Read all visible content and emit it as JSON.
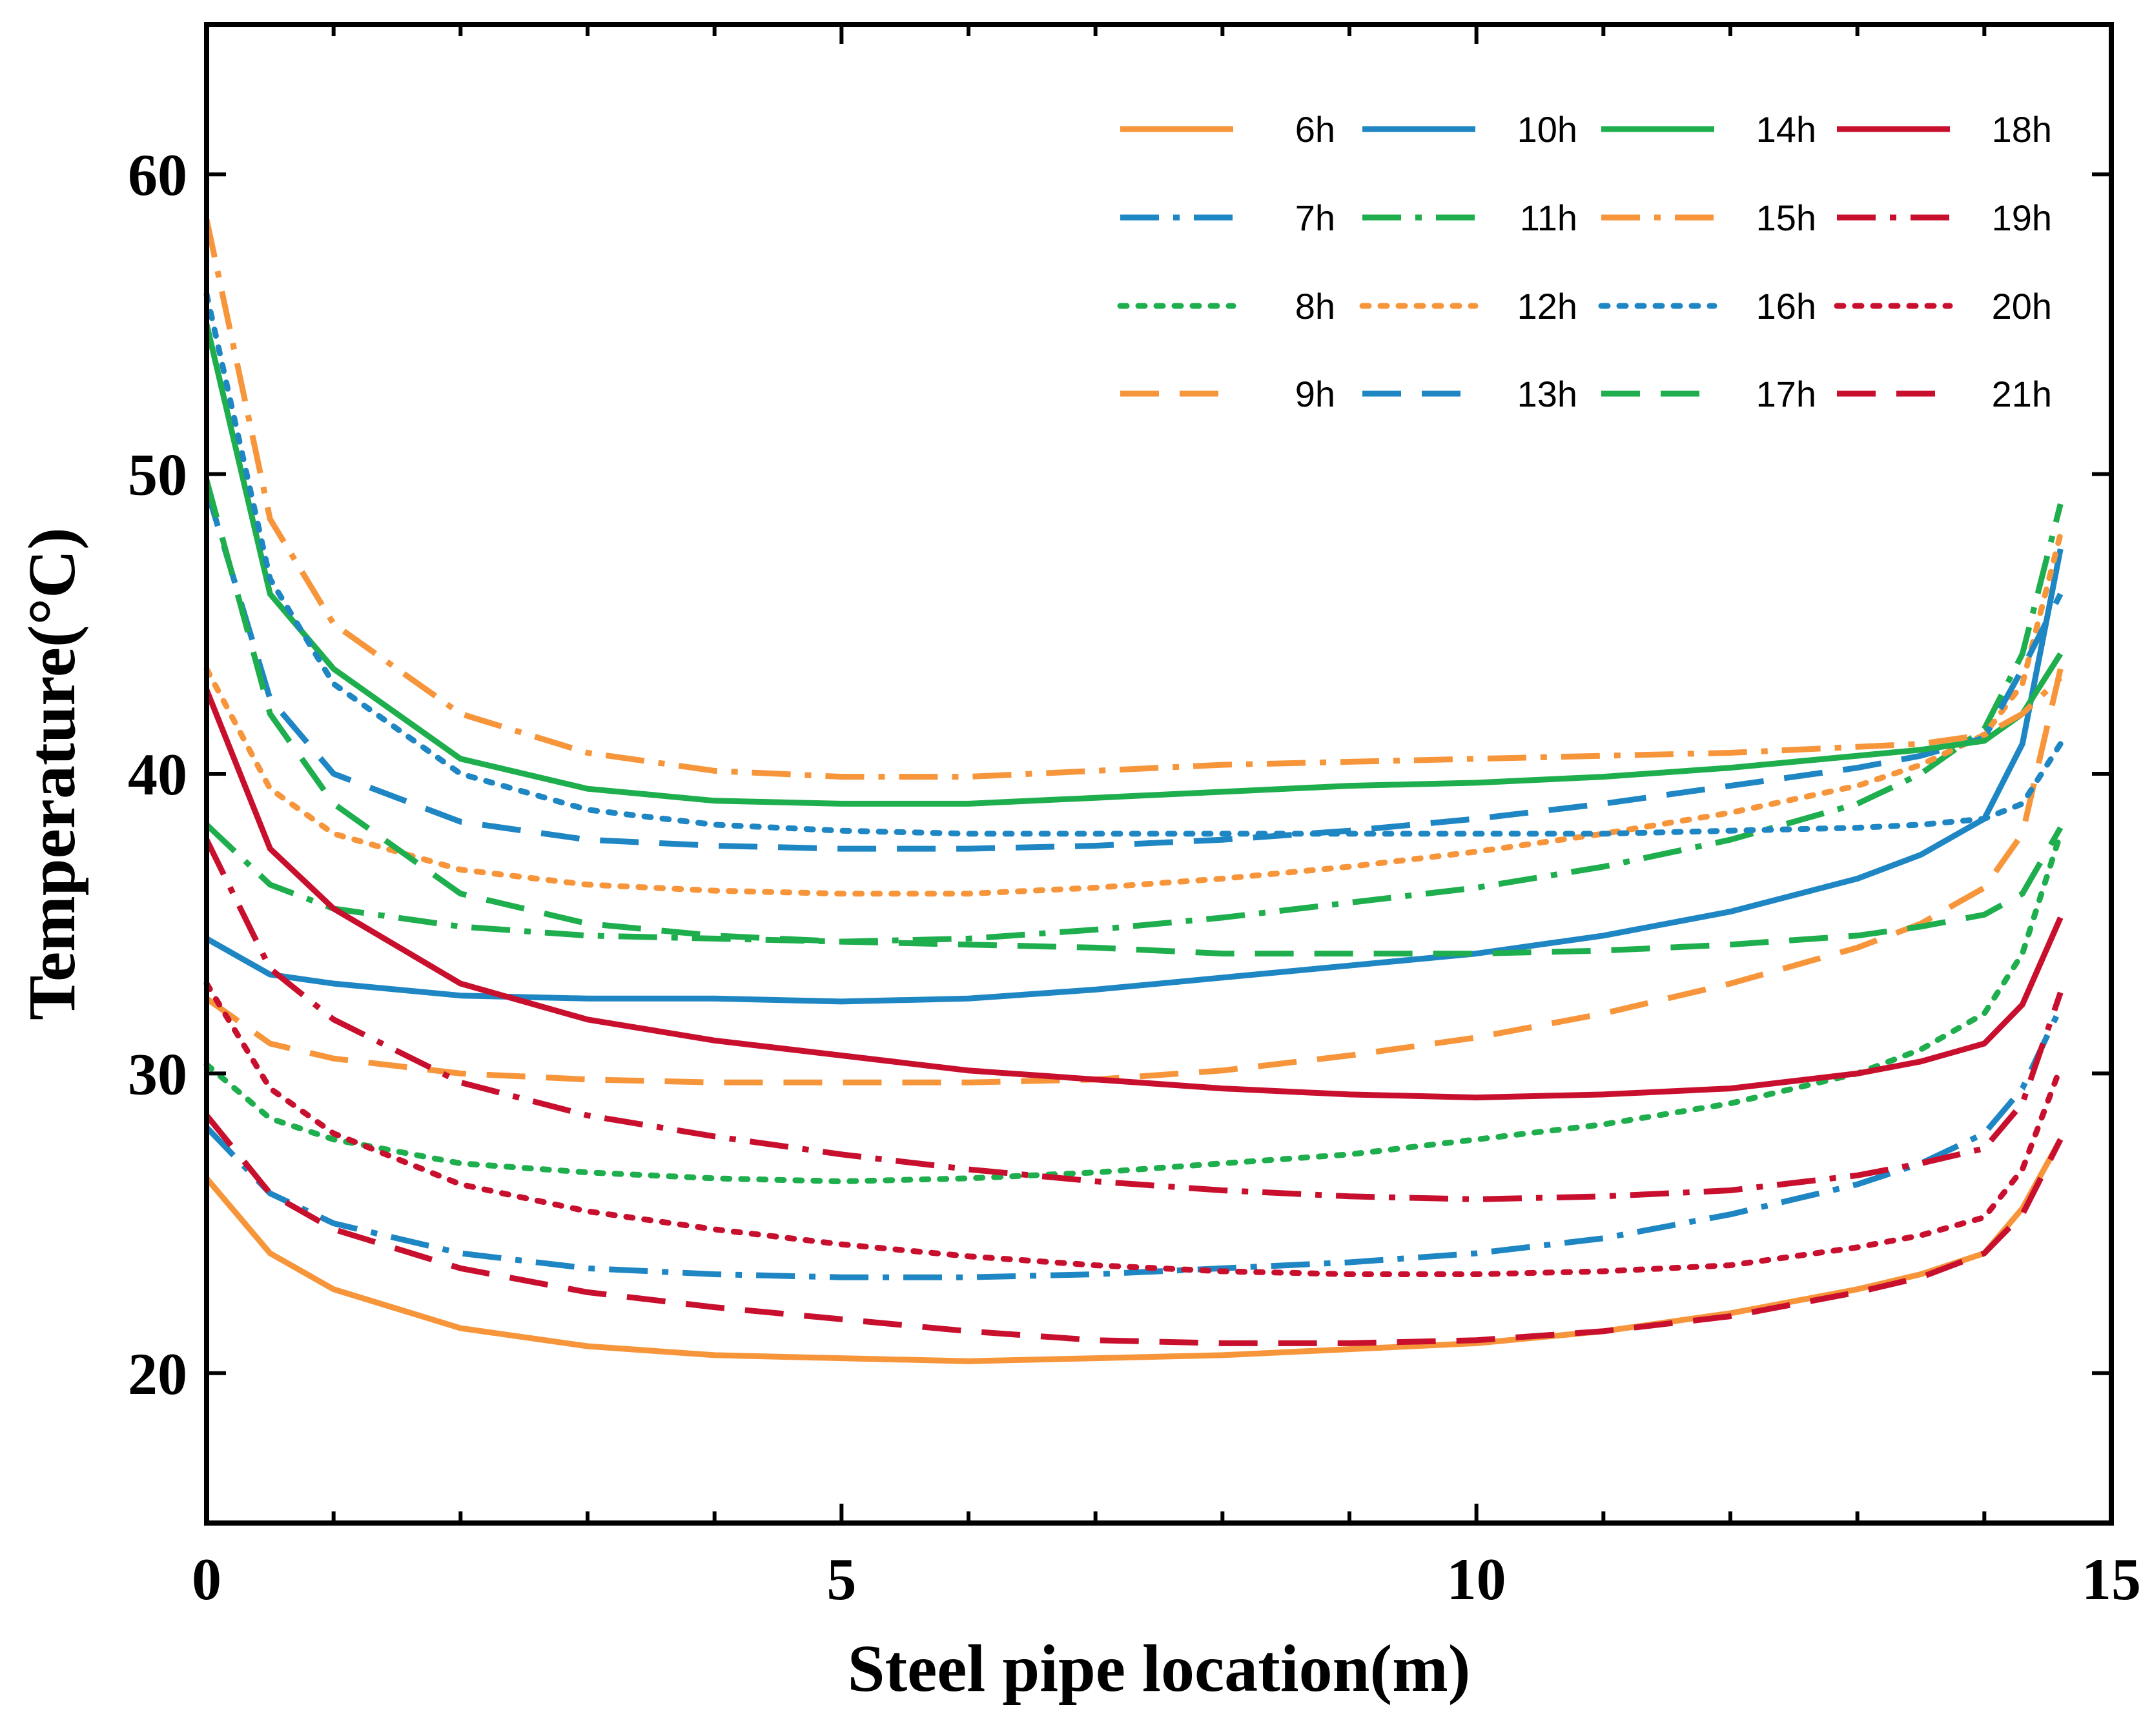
{
  "chart_data": {
    "type": "line",
    "xlabel": "Steel pipe location(m)",
    "ylabel": "Temperature(°C)",
    "xlim": [
      0,
      15
    ],
    "ylim": [
      15,
      65
    ],
    "xticks": [
      0,
      5,
      10,
      15
    ],
    "xtick_labels": [
      "0",
      "5",
      "10",
      "15"
    ],
    "yticks": [
      20,
      30,
      40,
      50,
      60
    ],
    "ytick_labels": [
      "20",
      "30",
      "40",
      "50",
      "60"
    ],
    "grid": false,
    "legend_position": "top-right",
    "x": [
      0,
      0.5,
      1,
      2,
      3,
      4,
      5,
      6,
      7,
      8,
      9,
      10,
      11,
      12,
      13,
      13.5,
      14,
      14.3,
      14.6
    ],
    "series": [
      {
        "name": "6h",
        "color": "#F7953B",
        "dash": "solid",
        "values": [
          26.5,
          24.0,
          22.8,
          21.5,
          20.9,
          20.6,
          20.5,
          20.4,
          20.5,
          20.6,
          20.8,
          21.0,
          21.4,
          22.0,
          22.8,
          23.3,
          24.0,
          25.5,
          27.8
        ]
      },
      {
        "name": "7h",
        "color": "#1F86C4",
        "dash": "dashdot",
        "values": [
          28.2,
          26.0,
          25.0,
          24.0,
          23.5,
          23.3,
          23.2,
          23.2,
          23.3,
          23.5,
          23.7,
          24.0,
          24.5,
          25.3,
          26.3,
          27.0,
          28.0,
          29.5,
          32.2
        ]
      },
      {
        "name": "8h",
        "color": "#1EAE4D",
        "dash": "dot",
        "values": [
          30.3,
          28.5,
          27.8,
          27.0,
          26.7,
          26.5,
          26.4,
          26.5,
          26.7,
          27.0,
          27.3,
          27.8,
          28.3,
          29.0,
          30.0,
          30.8,
          32.0,
          34.0,
          38.0
        ]
      },
      {
        "name": "9h",
        "color": "#F7953B",
        "dash": "dash",
        "values": [
          32.5,
          31.0,
          30.5,
          30.0,
          29.8,
          29.7,
          29.7,
          29.7,
          29.8,
          30.1,
          30.6,
          31.2,
          32.0,
          33.0,
          34.2,
          35.0,
          36.2,
          38.0,
          43.5
        ]
      },
      {
        "name": "10h",
        "color": "#1F86C4",
        "dash": "solid",
        "values": [
          34.5,
          33.3,
          33.0,
          32.6,
          32.5,
          32.5,
          32.4,
          32.5,
          32.8,
          33.2,
          33.6,
          34.0,
          34.6,
          35.4,
          36.5,
          37.3,
          38.5,
          41.0,
          47.5
        ]
      },
      {
        "name": "11h",
        "color": "#1EAE4D",
        "dash": "dashdot",
        "values": [
          38.3,
          36.3,
          35.5,
          34.9,
          34.6,
          34.5,
          34.4,
          34.5,
          34.8,
          35.2,
          35.7,
          36.2,
          36.9,
          37.8,
          39.0,
          40.0,
          41.5,
          44.0,
          49.0
        ]
      },
      {
        "name": "12h",
        "color": "#F7953B",
        "dash": "dot",
        "values": [
          43.5,
          39.5,
          38.0,
          36.8,
          36.3,
          36.1,
          36.0,
          36.0,
          36.2,
          36.5,
          36.9,
          37.4,
          38.0,
          38.7,
          39.6,
          40.3,
          41.3,
          43.0,
          48.0
        ]
      },
      {
        "name": "13h",
        "color": "#1F86C4",
        "dash": "dash",
        "values": [
          49.5,
          42.5,
          40.0,
          38.4,
          37.8,
          37.6,
          37.5,
          37.5,
          37.6,
          37.8,
          38.1,
          38.5,
          39.0,
          39.6,
          40.2,
          40.6,
          41.2,
          43.5,
          46.0
        ]
      },
      {
        "name": "14h",
        "color": "#1EAE4D",
        "dash": "solid",
        "values": [
          55.0,
          46.0,
          43.5,
          40.5,
          39.5,
          39.1,
          39.0,
          39.0,
          39.2,
          39.4,
          39.6,
          39.7,
          39.9,
          40.2,
          40.6,
          40.8,
          41.1,
          42.0,
          44.0
        ]
      },
      {
        "name": "15h",
        "color": "#F7953B",
        "dash": "dashdot",
        "values": [
          58.5,
          48.5,
          45.0,
          42.0,
          40.7,
          40.1,
          39.9,
          39.9,
          40.1,
          40.3,
          40.4,
          40.5,
          40.6,
          40.7,
          40.9,
          41.0,
          41.3,
          42.0,
          43.2
        ]
      },
      {
        "name": "16h",
        "color": "#1F86C4",
        "dash": "dot",
        "values": [
          56.0,
          46.5,
          43.0,
          40.0,
          38.8,
          38.3,
          38.1,
          38.0,
          38.0,
          38.0,
          38.0,
          38.0,
          38.0,
          38.1,
          38.2,
          38.3,
          38.5,
          39.0,
          41.0
        ]
      },
      {
        "name": "17h",
        "color": "#1EAE4D",
        "dash": "dash",
        "values": [
          49.8,
          42.0,
          39.0,
          36.0,
          35.0,
          34.6,
          34.4,
          34.3,
          34.2,
          34.0,
          34.0,
          34.0,
          34.1,
          34.3,
          34.6,
          34.9,
          35.3,
          36.0,
          38.2
        ]
      },
      {
        "name": "18h",
        "color": "#C8102E",
        "dash": "solid",
        "values": [
          42.8,
          37.5,
          35.5,
          33.0,
          31.8,
          31.1,
          30.6,
          30.1,
          29.8,
          29.5,
          29.3,
          29.2,
          29.3,
          29.5,
          30.0,
          30.4,
          31.0,
          32.3,
          35.2
        ]
      },
      {
        "name": "19h",
        "color": "#C8102E",
        "dash": "dashdot",
        "values": [
          37.8,
          33.5,
          31.8,
          29.7,
          28.6,
          27.9,
          27.3,
          26.8,
          26.4,
          26.1,
          25.9,
          25.8,
          25.9,
          26.1,
          26.6,
          27.0,
          27.5,
          29.0,
          32.7
        ]
      },
      {
        "name": "20h",
        "color": "#C8102E",
        "dash": "dot",
        "values": [
          33.0,
          29.5,
          28.0,
          26.3,
          25.4,
          24.8,
          24.3,
          23.9,
          23.6,
          23.4,
          23.3,
          23.3,
          23.4,
          23.6,
          24.2,
          24.6,
          25.2,
          26.8,
          30.2
        ]
      },
      {
        "name": "21h",
        "color": "#C8102E",
        "dash": "dash",
        "values": [
          28.6,
          26.0,
          24.8,
          23.5,
          22.7,
          22.2,
          21.8,
          21.4,
          21.1,
          21.0,
          21.0,
          21.1,
          21.4,
          21.9,
          22.7,
          23.2,
          24.0,
          25.3,
          27.8
        ]
      }
    ]
  }
}
